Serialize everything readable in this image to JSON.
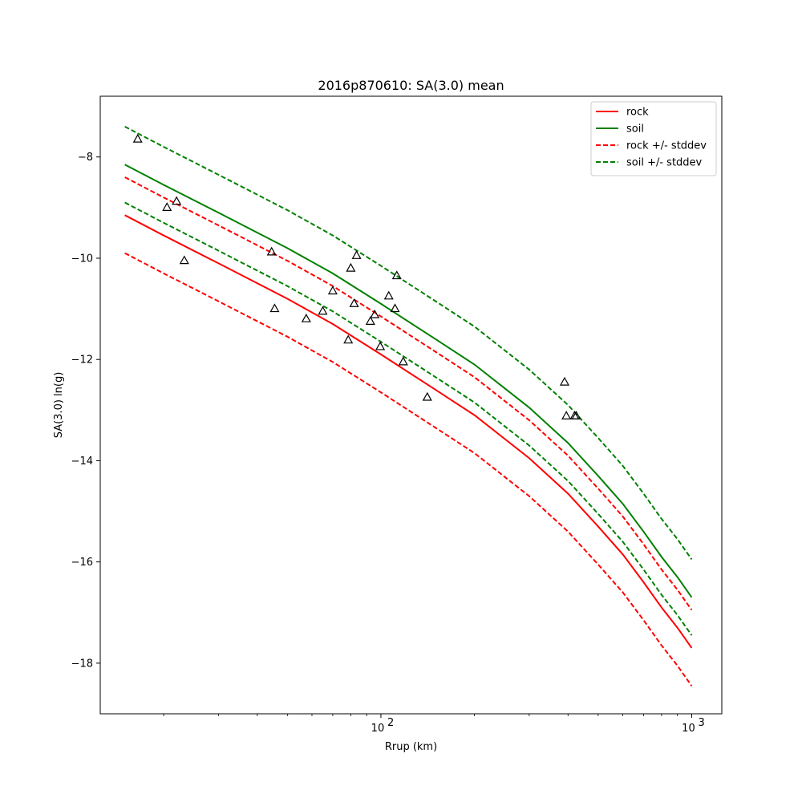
{
  "chart_data": {
    "type": "line",
    "title": "2016p870610: SA(3.0) mean",
    "xlabel": "Rrup (km)",
    "ylabel": "SA(3.0) ln(g)",
    "xscale": "log",
    "xlim": [
      12.5,
      1250
    ],
    "ylim": [
      -19.0,
      -6.8
    ],
    "x_major_ticks": [
      100,
      1000
    ],
    "x_major_tick_labels": [
      {
        "base": "10",
        "exp": "2"
      },
      {
        "base": "10",
        "exp": "3"
      }
    ],
    "y_ticks": [
      -18,
      -16,
      -14,
      -12,
      -10,
      -8
    ],
    "y_tick_labels": [
      "−18",
      "−16",
      "−14",
      "−12",
      "−10",
      "−8"
    ],
    "grid": false,
    "legend_position": "top-right",
    "series": [
      {
        "name": "rock",
        "color": "#ff0000",
        "style": "solid",
        "x": [
          15,
          20,
          30,
          50,
          70,
          100,
          150,
          200,
          300,
          400,
          500,
          600,
          700,
          800,
          900,
          1000
        ],
        "y": [
          -9.15,
          -9.55,
          -10.1,
          -10.8,
          -11.3,
          -11.9,
          -12.6,
          -13.1,
          -13.95,
          -14.65,
          -15.3,
          -15.85,
          -16.4,
          -16.9,
          -17.3,
          -17.7
        ]
      },
      {
        "name": "soil",
        "color": "#008000",
        "style": "solid",
        "x": [
          15,
          20,
          30,
          50,
          70,
          100,
          150,
          200,
          300,
          400,
          500,
          600,
          700,
          800,
          900,
          1000
        ],
        "y": [
          -8.15,
          -8.55,
          -9.1,
          -9.8,
          -10.3,
          -10.9,
          -11.6,
          -12.1,
          -12.95,
          -13.65,
          -14.3,
          -14.85,
          -15.4,
          -15.9,
          -16.3,
          -16.7
        ]
      },
      {
        "name": "rock +/- stddev",
        "color": "#ff0000",
        "style": "dashed",
        "x": [
          15,
          20,
          30,
          50,
          70,
          100,
          150,
          200,
          300,
          400,
          500,
          600,
          700,
          800,
          900,
          1000
        ],
        "y": [
          -8.4,
          -8.8,
          -9.35,
          -10.05,
          -10.55,
          -11.15,
          -11.85,
          -12.35,
          -13.2,
          -13.9,
          -14.55,
          -15.1,
          -15.65,
          -16.15,
          -16.55,
          -16.95
        ]
      },
      {
        "name": "rock lower stddev",
        "legend": false,
        "color": "#ff0000",
        "style": "dashed",
        "x": [
          15,
          20,
          30,
          50,
          70,
          100,
          150,
          200,
          300,
          400,
          500,
          600,
          700,
          800,
          900,
          1000
        ],
        "y": [
          -9.9,
          -10.3,
          -10.85,
          -11.55,
          -12.05,
          -12.65,
          -13.35,
          -13.85,
          -14.7,
          -15.4,
          -16.05,
          -16.6,
          -17.15,
          -17.65,
          -18.05,
          -18.45
        ]
      },
      {
        "name": "soil +/- stddev",
        "color": "#008000",
        "style": "dashed",
        "x": [
          15,
          20,
          30,
          50,
          70,
          100,
          150,
          200,
          300,
          400,
          500,
          600,
          700,
          800,
          900,
          1000
        ],
        "y": [
          -7.4,
          -7.8,
          -8.35,
          -9.05,
          -9.55,
          -10.15,
          -10.85,
          -11.35,
          -12.2,
          -12.9,
          -13.55,
          -14.1,
          -14.65,
          -15.15,
          -15.55,
          -15.95
        ]
      },
      {
        "name": "soil lower stddev",
        "legend": false,
        "color": "#008000",
        "style": "dashed",
        "x": [
          15,
          20,
          30,
          50,
          70,
          100,
          150,
          200,
          300,
          400,
          500,
          600,
          700,
          800,
          900,
          1000
        ],
        "y": [
          -8.9,
          -9.3,
          -9.85,
          -10.55,
          -11.05,
          -11.65,
          -12.35,
          -12.85,
          -13.7,
          -14.4,
          -15.05,
          -15.6,
          -16.15,
          -16.65,
          -17.05,
          -17.45
        ]
      }
    ],
    "observations": {
      "marker": "triangle",
      "color": "#000000",
      "x": [
        16.5,
        20.5,
        22,
        23.3,
        44.5,
        45.5,
        57.5,
        65,
        70,
        78.5,
        80,
        82,
        83.5,
        92.5,
        95.5,
        99.5,
        106,
        111,
        112.5,
        118,
        141,
        390,
        395,
        420,
        425
      ],
      "y": [
        -7.65,
        -9.0,
        -8.88,
        -10.05,
        -9.88,
        -11.0,
        -11.2,
        -11.05,
        -10.65,
        -11.62,
        -10.2,
        -10.9,
        -9.95,
        -11.25,
        -11.12,
        -11.75,
        -10.75,
        -11.0,
        -10.35,
        -12.05,
        -12.75,
        -12.45,
        -13.12,
        -13.12,
        -13.12
      ]
    }
  }
}
